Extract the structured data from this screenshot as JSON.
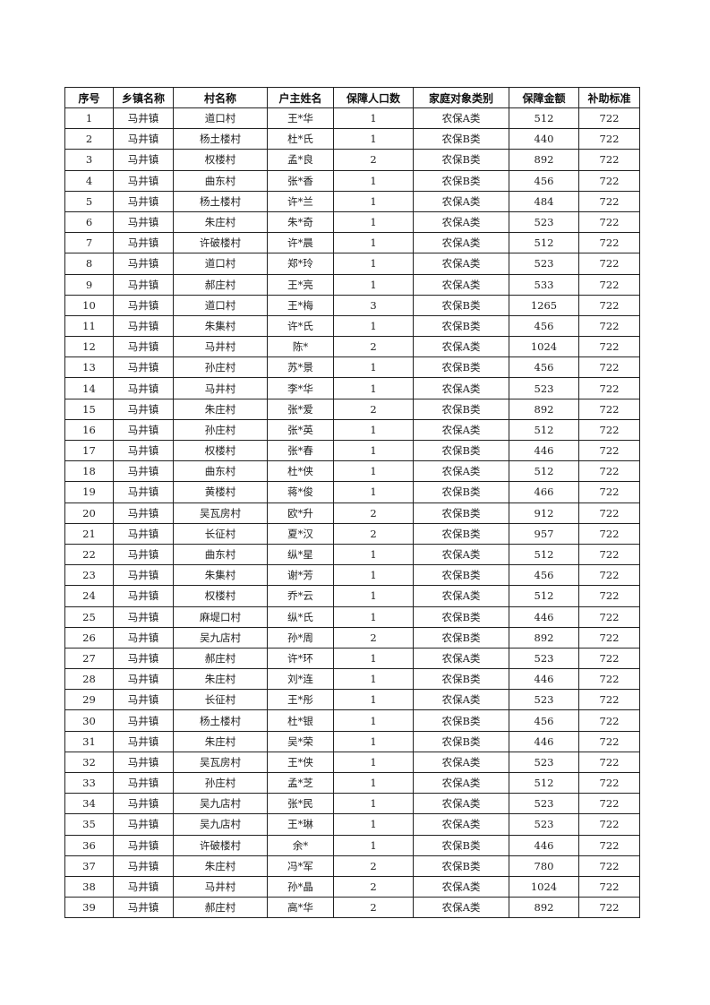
{
  "table": {
    "headers": [
      "序号",
      "乡镇名称",
      "村名称",
      "户主姓名",
      "保障人口数",
      "家庭对象类别",
      "保障金额",
      "补助标准"
    ],
    "rows": [
      [
        "1",
        "马井镇",
        "道口村",
        "王*华",
        "1",
        "农保A类",
        "512",
        "722"
      ],
      [
        "2",
        "马井镇",
        "杨土楼村",
        "杜*氏",
        "1",
        "农保B类",
        "440",
        "722"
      ],
      [
        "3",
        "马井镇",
        "权楼村",
        "孟*良",
        "2",
        "农保B类",
        "892",
        "722"
      ],
      [
        "4",
        "马井镇",
        "曲东村",
        "张*香",
        "1",
        "农保B类",
        "456",
        "722"
      ],
      [
        "5",
        "马井镇",
        "杨土楼村",
        "许*兰",
        "1",
        "农保A类",
        "484",
        "722"
      ],
      [
        "6",
        "马井镇",
        "朱庄村",
        "朱*奇",
        "1",
        "农保A类",
        "523",
        "722"
      ],
      [
        "7",
        "马井镇",
        "许破楼村",
        "许*晨",
        "1",
        "农保A类",
        "512",
        "722"
      ],
      [
        "8",
        "马井镇",
        "道口村",
        "郑*玲",
        "1",
        "农保A类",
        "523",
        "722"
      ],
      [
        "9",
        "马井镇",
        "郝庄村",
        "王*亮",
        "1",
        "农保A类",
        "533",
        "722"
      ],
      [
        "10",
        "马井镇",
        "道口村",
        "王*梅",
        "3",
        "农保B类",
        "1265",
        "722"
      ],
      [
        "11",
        "马井镇",
        "朱集村",
        "许*氏",
        "1",
        "农保B类",
        "456",
        "722"
      ],
      [
        "12",
        "马井镇",
        "马井村",
        "陈*",
        "2",
        "农保A类",
        "1024",
        "722"
      ],
      [
        "13",
        "马井镇",
        "孙庄村",
        "苏*景",
        "1",
        "农保B类",
        "456",
        "722"
      ],
      [
        "14",
        "马井镇",
        "马井村",
        "李*华",
        "1",
        "农保A类",
        "523",
        "722"
      ],
      [
        "15",
        "马井镇",
        "朱庄村",
        "张*爱",
        "2",
        "农保B类",
        "892",
        "722"
      ],
      [
        "16",
        "马井镇",
        "孙庄村",
        "张*英",
        "1",
        "农保A类",
        "512",
        "722"
      ],
      [
        "17",
        "马井镇",
        "权楼村",
        "张*春",
        "1",
        "农保B类",
        "446",
        "722"
      ],
      [
        "18",
        "马井镇",
        "曲东村",
        "杜*侠",
        "1",
        "农保A类",
        "512",
        "722"
      ],
      [
        "19",
        "马井镇",
        "黄楼村",
        "蒋*俊",
        "1",
        "农保B类",
        "466",
        "722"
      ],
      [
        "20",
        "马井镇",
        "吴瓦房村",
        "欧*升",
        "2",
        "农保B类",
        "912",
        "722"
      ],
      [
        "21",
        "马井镇",
        "长征村",
        "夏*汉",
        "2",
        "农保B类",
        "957",
        "722"
      ],
      [
        "22",
        "马井镇",
        "曲东村",
        "纵*星",
        "1",
        "农保A类",
        "512",
        "722"
      ],
      [
        "23",
        "马井镇",
        "朱集村",
        "谢*芳",
        "1",
        "农保B类",
        "456",
        "722"
      ],
      [
        "24",
        "马井镇",
        "权楼村",
        "乔*云",
        "1",
        "农保A类",
        "512",
        "722"
      ],
      [
        "25",
        "马井镇",
        "麻堤口村",
        "纵*氏",
        "1",
        "农保B类",
        "446",
        "722"
      ],
      [
        "26",
        "马井镇",
        "吴九店村",
        "孙*周",
        "2",
        "农保B类",
        "892",
        "722"
      ],
      [
        "27",
        "马井镇",
        "郝庄村",
        "许*环",
        "1",
        "农保A类",
        "523",
        "722"
      ],
      [
        "28",
        "马井镇",
        "朱庄村",
        "刘*连",
        "1",
        "农保B类",
        "446",
        "722"
      ],
      [
        "29",
        "马井镇",
        "长征村",
        "王*彤",
        "1",
        "农保A类",
        "523",
        "722"
      ],
      [
        "30",
        "马井镇",
        "杨土楼村",
        "杜*银",
        "1",
        "农保B类",
        "456",
        "722"
      ],
      [
        "31",
        "马井镇",
        "朱庄村",
        "吴*荣",
        "1",
        "农保B类",
        "446",
        "722"
      ],
      [
        "32",
        "马井镇",
        "吴瓦房村",
        "王*侠",
        "1",
        "农保A类",
        "523",
        "722"
      ],
      [
        "33",
        "马井镇",
        "孙庄村",
        "孟*芝",
        "1",
        "农保A类",
        "512",
        "722"
      ],
      [
        "34",
        "马井镇",
        "吴九店村",
        "张*民",
        "1",
        "农保A类",
        "523",
        "722"
      ],
      [
        "35",
        "马井镇",
        "吴九店村",
        "王*琳",
        "1",
        "农保A类",
        "523",
        "722"
      ],
      [
        "36",
        "马井镇",
        "许破楼村",
        "余*",
        "1",
        "农保B类",
        "446",
        "722"
      ],
      [
        "37",
        "马井镇",
        "朱庄村",
        "冯*军",
        "2",
        "农保B类",
        "780",
        "722"
      ],
      [
        "38",
        "马井镇",
        "马井村",
        "孙*晶",
        "2",
        "农保A类",
        "1024",
        "722"
      ],
      [
        "39",
        "马井镇",
        "郝庄村",
        "高*华",
        "2",
        "农保A类",
        "892",
        "722"
      ]
    ]
  }
}
